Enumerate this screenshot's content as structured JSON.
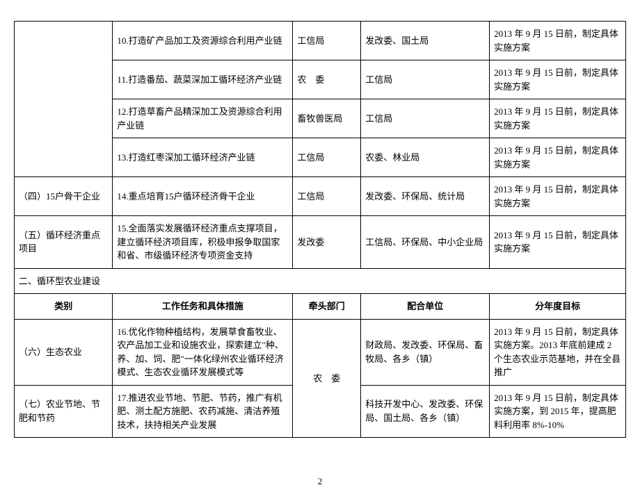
{
  "page": {
    "number": "2"
  },
  "colors": {
    "border": "#000000",
    "background": "#ffffff",
    "text": "#000000"
  },
  "font": {
    "family": "SimSun",
    "cell_size": 13,
    "line_height": 1.5
  },
  "table1": {
    "rows": [
      {
        "task": "10.打造矿产品加工及资源综合利用产业链",
        "lead": "工信局",
        "coord": "发改委、国土局",
        "goal": "2013 年 9 月 15 日前，制定具体实施方案"
      },
      {
        "task": "11.打造番茄、蔬菜深加工循环经济产业链",
        "lead": "农　委",
        "coord": "工信局",
        "goal": "2013 年 9 月 15 日前，制定具体实施方案"
      },
      {
        "task": "12.打造草畜产品精深加工及资源综合利用产业链",
        "lead": "畜牧兽医局",
        "coord": "工信局",
        "goal": "2013 年 9 月 15 日前，制定具体实施方案"
      },
      {
        "task": "13.打造红枣深加工循环经济产业链",
        "lead": "工信局",
        "coord": "农委、林业局",
        "goal": "2013 年 9 月 15 日前，制定具体实施方案"
      },
      {
        "category": "（四）15户骨干企业",
        "task": "14.重点培育15户循环经济骨干企业",
        "lead": "工信局",
        "coord": "发改委、环保局、统计局",
        "goal": "2013 年 9 月 15 日前，制定具体实施方案"
      },
      {
        "category": "（五）循环经济重点项目",
        "task": "15.全面落实发展循环经济重点支撑项目，建立循环经济项目库，积极申报争取国家和省、市级循环经济专项资金支持",
        "lead": "发改委",
        "coord": "工信局、环保局、中小企业局",
        "goal": "2013 年 9 月 15 日前，制定具体实施方案"
      }
    ]
  },
  "section2": {
    "title": "二、循环型农业建设",
    "headers": {
      "category": "类别",
      "task": "工作任务和具体措施",
      "lead": "牵头部门",
      "coord": "配合单位",
      "goal": "分年度目标"
    },
    "rows": [
      {
        "category": "（六）生态农业",
        "task": "16.优化作物种植结构，发展草食畜牧业、农产品加工业和设施农业，探索建立\"种、养、加、饲、肥\"一体化绿州农业循环经济模式、生态农业循环发展模式等",
        "lead": "农　委",
        "coord": "财政局、发改委、环保局、畜牧局、各乡（镇）",
        "goal": "2013 年 9 月 15 日前，制定具体实施方案。2013 年底前建成 2 个生态农业示范基地，并在全县推广"
      },
      {
        "category": "（七）农业节地、节肥和节药",
        "task": "17.推进农业节地、节肥、节药，推广有机肥、测土配方施肥、农药减施、清洁养殖技术，扶持相关产业发展",
        "coord": "科技开发中心、发改委、环保局、国土局、各乡（镇）",
        "goal": "2013 年 9 月 15 日前，制定具体实施方案，到 2015 年，提高肥料利用率 8%-10%"
      }
    ]
  }
}
